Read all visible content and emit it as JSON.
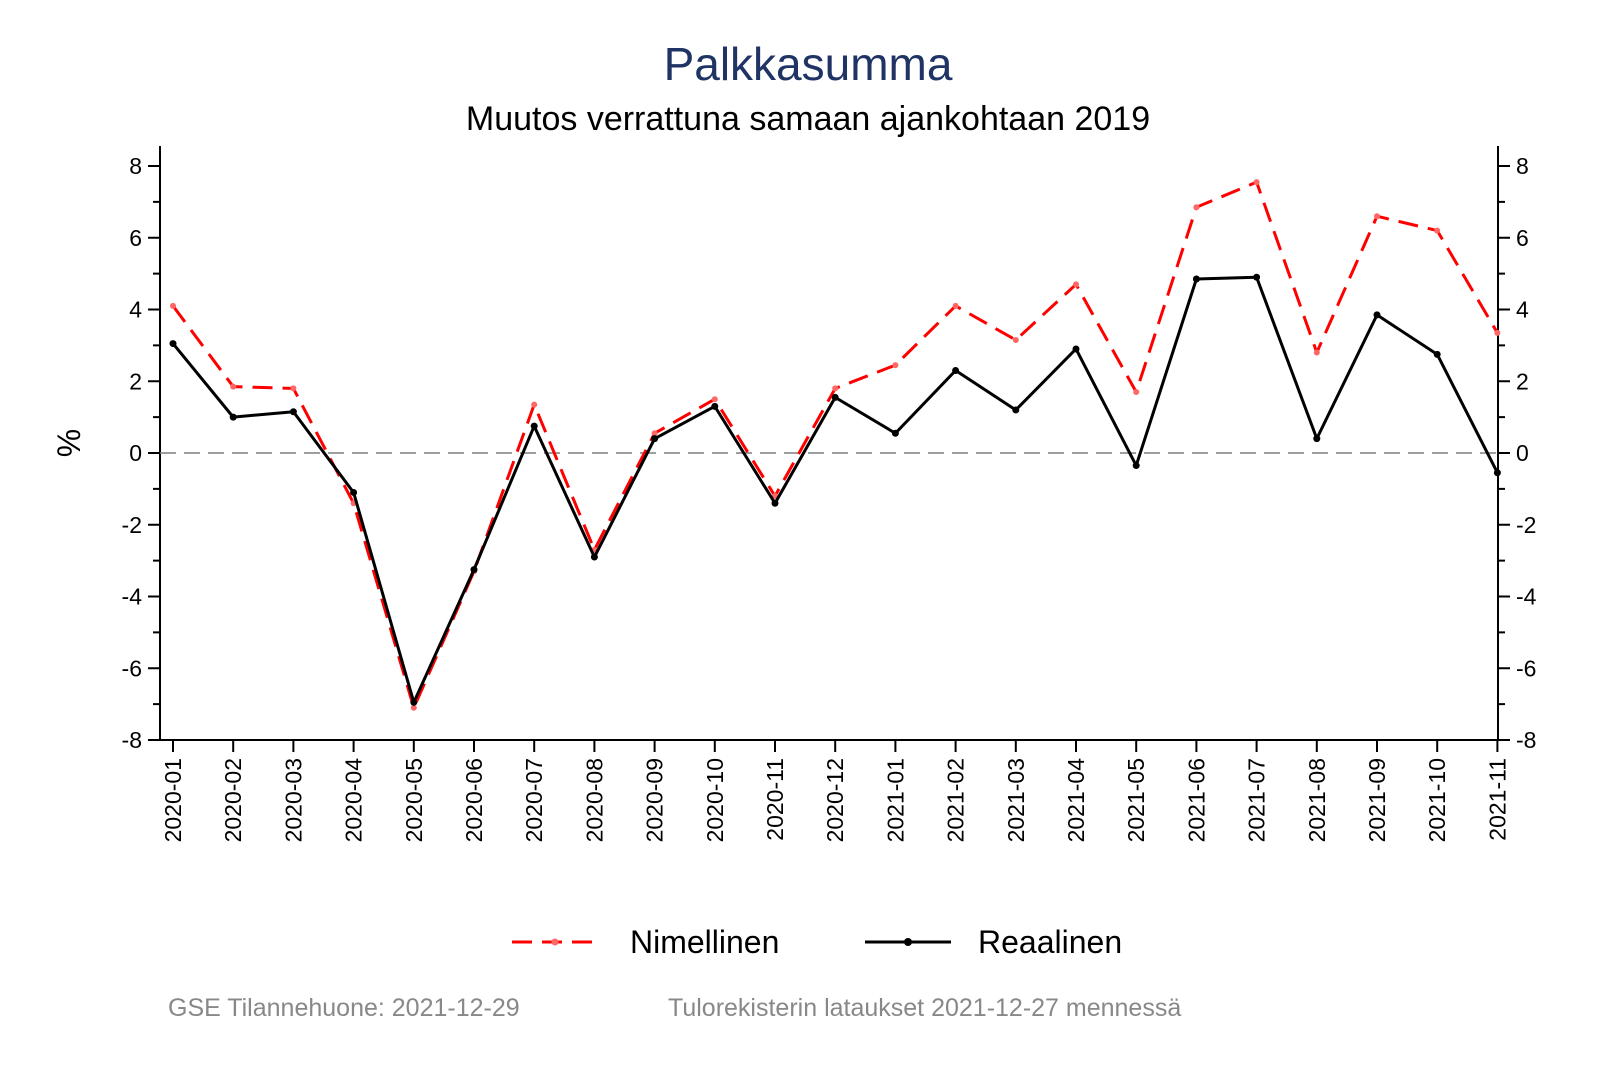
{
  "chart_data": {
    "type": "line",
    "title": "Palkkasumma",
    "subtitle": "Muutos verrattuna samaan ajankohtaan 2019",
    "ylabel": "%",
    "xlabel": "",
    "ylim": [
      -8,
      8
    ],
    "yticks": [
      8,
      6,
      4,
      2,
      0,
      -2,
      -4,
      -6,
      -8
    ],
    "yticks_minor": true,
    "right_axis": true,
    "zero_line": true,
    "grid": false,
    "legend_position": "bottom",
    "categories": [
      "2020-01",
      "2020-02",
      "2020-03",
      "2020-04",
      "2020-05",
      "2020-06",
      "2020-07",
      "2020-08",
      "2020-09",
      "2020-10",
      "2020-11",
      "2020-12",
      "2021-01",
      "2021-02",
      "2021-03",
      "2021-04",
      "2021-05",
      "2021-06",
      "2021-07",
      "2021-08",
      "2021-09",
      "2021-10",
      "2021-11"
    ],
    "series": [
      {
        "name": "Nimellinen",
        "color": "#ff0000",
        "style": "dashed",
        "values": [
          4.1,
          1.85,
          1.8,
          -1.4,
          -7.1,
          -3.3,
          1.35,
          -2.7,
          0.55,
          1.5,
          -1.2,
          1.8,
          2.45,
          4.1,
          3.15,
          4.7,
          1.7,
          6.85,
          7.55,
          2.8,
          6.6,
          6.2,
          3.35
        ]
      },
      {
        "name": "Reaalinen",
        "color": "#000000",
        "style": "solid",
        "values": [
          3.05,
          1.0,
          1.15,
          -1.1,
          -6.95,
          -3.25,
          0.75,
          -2.9,
          0.4,
          1.3,
          -1.4,
          1.55,
          0.55,
          2.3,
          1.2,
          2.9,
          -0.35,
          4.85,
          4.9,
          0.4,
          3.85,
          2.75,
          -0.55
        ]
      }
    ],
    "colors": {
      "title": "#1f3464",
      "nominal": "#ff0000",
      "real": "#000000",
      "zero_line": "#7f7f7f",
      "footer": "#888888"
    }
  },
  "footer": {
    "left": "GSE Tilannehuone: 2021-12-29",
    "right": "Tulorekisterin lataukset 2021-12-27 mennessä"
  }
}
